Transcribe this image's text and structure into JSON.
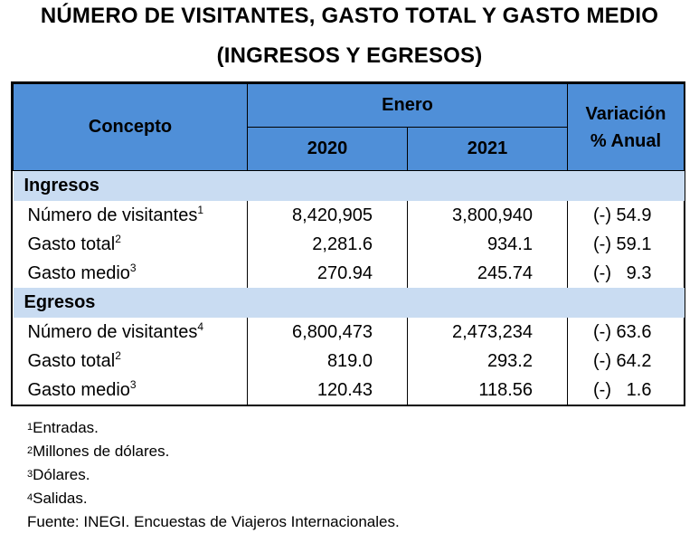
{
  "title": {
    "line1": "NÚMERO DE VISITANTES, GASTO TOTAL Y GASTO MEDIO",
    "line2": "(INGRESOS Y EGRESOS)"
  },
  "header": {
    "concepto": "Concepto",
    "enero": "Enero",
    "year_2020": "2020",
    "year_2021": "2021",
    "variacion_line1": "Variación",
    "variacion_line2": "% Anual"
  },
  "sections": [
    {
      "name": "Ingresos",
      "rows": [
        {
          "label": "Número de visitantes",
          "note": "1",
          "v2020": "8,420,905",
          "v2021": "3,800,940",
          "variation": "(-) 54.9"
        },
        {
          "label": "Gasto total",
          "note": "2",
          "v2020": "2,281.6",
          "v2021": "934.1",
          "variation": "(-) 59.1"
        },
        {
          "label": "Gasto medio",
          "note": "3",
          "v2020": "270.94",
          "v2021": "245.74",
          "variation": "(-)   9.3"
        }
      ]
    },
    {
      "name": "Egresos",
      "rows": [
        {
          "label": "Número de visitantes",
          "note": "4",
          "v2020": "6,800,473",
          "v2021": "2,473,234",
          "variation": "(-) 63.6"
        },
        {
          "label": "Gasto total",
          "note": "2",
          "v2020": "819.0",
          "v2021": "293.2",
          "variation": "(-) 64.2"
        },
        {
          "label": "Gasto medio",
          "note": "3",
          "v2020": "120.43",
          "v2021": "118.56",
          "variation": "(-)   1.6"
        }
      ]
    }
  ],
  "footnotes": [
    {
      "mark": "1",
      "text": "Entradas."
    },
    {
      "mark": "2",
      "text": "Millones de dólares."
    },
    {
      "mark": "3",
      "text": "Dólares."
    },
    {
      "mark": "4",
      "text": "Salidas."
    }
  ],
  "source": "Fuente: INEGI. Encuestas de Viajeros Internacionales.",
  "colors": {
    "header_bg": "#4f8fd8",
    "section_bg": "#c9dcf2"
  }
}
